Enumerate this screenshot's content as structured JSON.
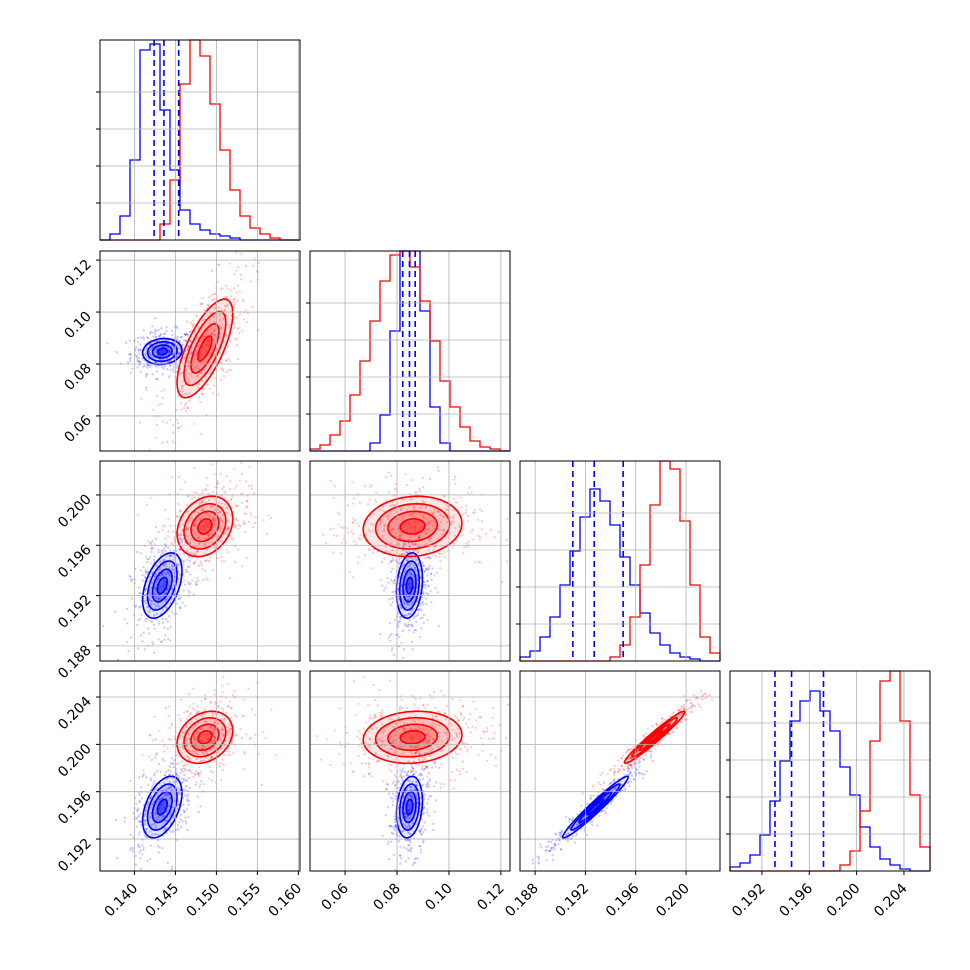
{
  "chart_data": {
    "type": "corner",
    "grid": true,
    "colors": {
      "blue": "#0000ff",
      "red": "#ff0000",
      "grid": "#b0b0b0"
    },
    "ticks": {
      "p0": [
        "0.140",
        "0.145",
        "0.150",
        "0.155",
        "0.160"
      ],
      "p1": [
        "0.06",
        "0.08",
        "0.10",
        "0.12"
      ],
      "p2": [
        "0.188",
        "0.192",
        "0.196",
        "0.200"
      ],
      "p3": [
        "0.192",
        "0.196",
        "0.200",
        "0.204"
      ]
    },
    "ranges": {
      "p0": [
        0.1358,
        0.1602
      ],
      "p1": [
        0.0465,
        0.1235
      ],
      "p2": [
        0.1868,
        0.2027
      ],
      "p3": [
        0.1893,
        0.2062
      ]
    },
    "quantiles": {
      "p0": [
        0.1424,
        0.1436,
        0.1454
      ],
      "p1": [
        0.0822,
        0.0848,
        0.087
      ],
      "p2": [
        0.191,
        0.1927,
        0.195
      ],
      "p3": [
        0.1931,
        0.1945,
        0.1972
      ]
    },
    "series": [
      {
        "color": "blue",
        "centers": [
          0.1434,
          0.0848,
          0.1928,
          0.1947
        ],
        "sigmas": [
          0.0012,
          0.0025,
          0.0013,
          0.0013
        ],
        "correlations": {
          "0-1": 0.1,
          "0-2": 0.45,
          "0-3": 0.45,
          "1-2": 0.2,
          "1-3": 0.2,
          "2-3": 0.97
        },
        "hist": {
          "p0": [
            0,
            3,
            12,
            40,
            95,
            98,
            65,
            35,
            15,
            8,
            5,
            3,
            2,
            1,
            0,
            0,
            0,
            0,
            0,
            0
          ],
          "p1": [
            0,
            0,
            0,
            0,
            0,
            0,
            4,
            18,
            60,
            100,
            100,
            70,
            22,
            4,
            0,
            0,
            0,
            0,
            0,
            0
          ],
          "p2": [
            2,
            5,
            12,
            22,
            38,
            55,
            72,
            86,
            80,
            68,
            52,
            38,
            24,
            14,
            8,
            4,
            2,
            1,
            0,
            0
          ],
          "p3": [
            2,
            4,
            8,
            18,
            35,
            55,
            75,
            85,
            90,
            80,
            70,
            52,
            38,
            22,
            12,
            6,
            3,
            1,
            0,
            0
          ]
        }
      },
      {
        "color": "red",
        "centers": [
          0.1486,
          0.086,
          0.1975,
          0.2006
        ],
        "sigmas": [
          0.0017,
          0.0095,
          0.0012,
          0.0011
        ],
        "correlations": {
          "0-1": 0.7,
          "0-2": 0.25,
          "0-3": 0.25,
          "1-2": 0.1,
          "1-3": 0.1,
          "2-3": 0.97
        },
        "hist": {
          "p0": [
            0,
            0,
            0,
            0,
            0,
            0,
            8,
            30,
            78,
            100,
            92,
            68,
            45,
            25,
            12,
            6,
            3,
            1,
            0,
            0
          ],
          "p1": [
            1,
            3,
            8,
            15,
            28,
            45,
            65,
            85,
            98,
            100,
            92,
            75,
            55,
            35,
            22,
            12,
            5,
            2,
            1,
            0
          ],
          "p2": [
            0,
            0,
            0,
            0,
            0,
            0,
            0,
            0,
            0,
            2,
            8,
            22,
            48,
            78,
            100,
            96,
            70,
            38,
            12,
            4
          ],
          "p3": [
            0,
            0,
            0,
            0,
            0,
            0,
            0,
            0,
            0,
            0,
            0,
            3,
            10,
            30,
            65,
            95,
            100,
            75,
            38,
            12
          ]
        }
      }
    ]
  }
}
